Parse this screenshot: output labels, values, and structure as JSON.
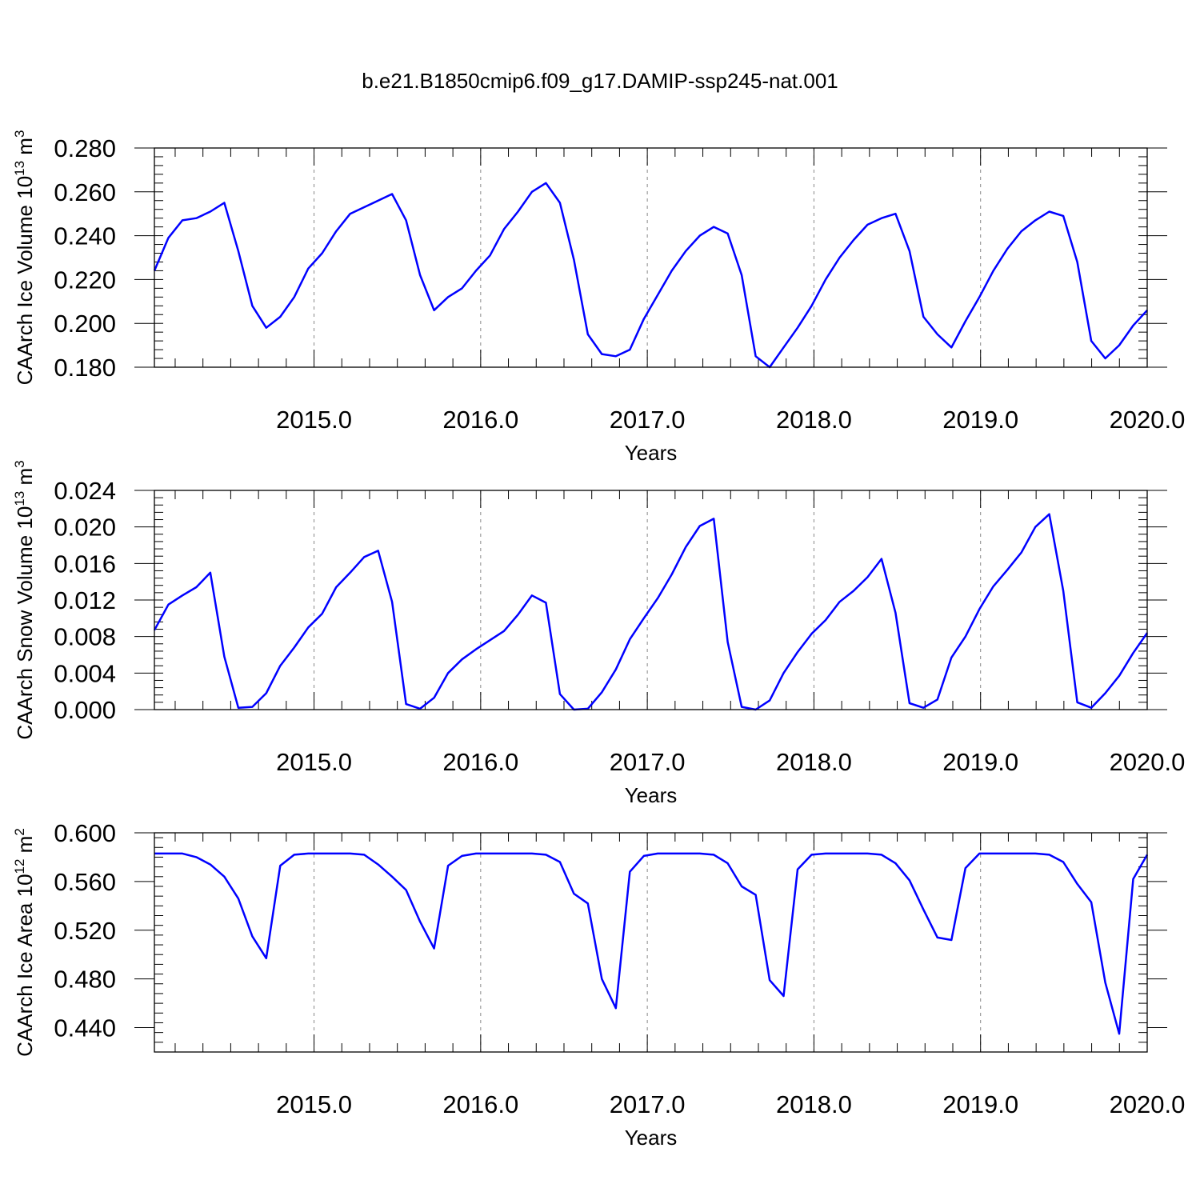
{
  "title": "b.e21.B1850cmip6.f09_g17.DAMIP-ssp245-nat.001",
  "colors": {
    "line": "#0000ff",
    "axis": "#000000",
    "grid": "#888888"
  },
  "chart_data": [
    {
      "type": "line",
      "ylabel_main": "CAArch Ice Volume 10",
      "ylabel_exp": "13",
      "ylabel_unit": " m",
      "ylabel_unit_exp": "3",
      "xlabel": "Years",
      "xlim": [
        2014.042,
        2020.0
      ],
      "ylim": [
        0.18,
        0.28
      ],
      "yticks": [
        "0.180",
        "0.200",
        "0.220",
        "0.240",
        "0.260",
        "0.280"
      ],
      "xticks": [
        "2015.0",
        "2016.0",
        "2017.0",
        "2018.0",
        "2019.0",
        "2020.0"
      ],
      "x_major_grid": "dashed vertical",
      "series": [
        {
          "values": [
            0.224,
            0.239,
            0.247,
            0.248,
            0.251,
            0.255,
            0.233,
            0.208,
            0.198,
            0.203,
            0.212,
            0.225,
            0.232,
            0.242,
            0.25,
            0.253,
            0.256,
            0.259,
            0.247,
            0.222,
            0.206,
            0.212,
            0.216,
            0.224,
            0.231,
            0.243,
            0.251,
            0.26,
            0.264,
            0.255,
            0.229,
            0.195,
            0.186,
            0.185,
            0.188,
            0.202,
            0.213,
            0.224,
            0.233,
            0.24,
            0.244,
            0.241,
            0.222,
            0.185,
            0.18,
            0.189,
            0.198,
            0.208,
            0.22,
            0.23,
            0.238,
            0.245,
            0.248,
            0.25,
            0.233,
            0.203,
            0.195,
            0.189,
            0.201,
            0.212,
            0.224,
            0.234,
            0.242,
            0.247,
            0.251,
            0.249,
            0.228,
            0.192,
            0.184,
            0.19,
            0.199,
            0.206
          ]
        }
      ]
    },
    {
      "type": "line",
      "ylabel_main": "CAArch Snow Volume 10",
      "ylabel_exp": "13",
      "ylabel_unit": " m",
      "ylabel_unit_exp": "3",
      "xlabel": "Years",
      "xlim": [
        2014.042,
        2020.0
      ],
      "ylim": [
        0.0,
        0.024
      ],
      "yticks": [
        "0.000",
        "0.004",
        "0.008",
        "0.012",
        "0.016",
        "0.020",
        "0.024"
      ],
      "xticks": [
        "2015.0",
        "2016.0",
        "2017.0",
        "2018.0",
        "2019.0",
        "2020.0"
      ],
      "x_major_grid": "dashed vertical",
      "series": [
        {
          "values": [
            0.0087,
            0.0115,
            0.0125,
            0.0134,
            0.015,
            0.0058,
            0.0002,
            0.0003,
            0.0018,
            0.0048,
            0.0068,
            0.009,
            0.0105,
            0.0134,
            0.015,
            0.0167,
            0.0174,
            0.0118,
            0.0006,
            0.0001,
            0.0013,
            0.004,
            0.0055,
            0.0066,
            0.0076,
            0.0086,
            0.0104,
            0.0125,
            0.0117,
            0.0017,
            0.0,
            0.0001,
            0.0019,
            0.0044,
            0.0077,
            0.01,
            0.0122,
            0.0148,
            0.0178,
            0.0201,
            0.0209,
            0.0074,
            0.0003,
            0.0,
            0.001,
            0.004,
            0.0063,
            0.0083,
            0.0098,
            0.0118,
            0.013,
            0.0145,
            0.0165,
            0.0106,
            0.0007,
            0.0002,
            0.0011,
            0.0057,
            0.008,
            0.011,
            0.0135,
            0.0153,
            0.0172,
            0.02,
            0.0214,
            0.013,
            0.0008,
            0.0002,
            0.0018,
            0.0037,
            0.0062,
            0.0084
          ]
        }
      ]
    },
    {
      "type": "line",
      "ylabel_main": "CAArch Ice Area 10",
      "ylabel_exp": "12",
      "ylabel_unit": " m",
      "ylabel_unit_exp": "2",
      "xlabel": "Years",
      "xlim": [
        2014.042,
        2020.0
      ],
      "ylim": [
        0.42,
        0.6
      ],
      "yticks": [
        "0.440",
        "0.480",
        "0.520",
        "0.560",
        "0.600"
      ],
      "ytick_values": [
        0.44,
        0.48,
        0.52,
        0.56,
        0.6
      ],
      "xticks": [
        "2015.0",
        "2016.0",
        "2017.0",
        "2018.0",
        "2019.0",
        "2020.0"
      ],
      "x_major_grid": "dashed vertical",
      "series": [
        {
          "values": [
            0.583,
            0.583,
            0.583,
            0.58,
            0.574,
            0.564,
            0.546,
            0.515,
            0.497,
            0.573,
            0.582,
            0.583,
            0.583,
            0.583,
            0.583,
            0.582,
            0.574,
            0.564,
            0.553,
            0.527,
            0.505,
            0.573,
            0.581,
            0.583,
            0.583,
            0.583,
            0.583,
            0.583,
            0.582,
            0.576,
            0.55,
            0.542,
            0.48,
            0.456,
            0.568,
            0.581,
            0.583,
            0.583,
            0.583,
            0.583,
            0.582,
            0.575,
            0.556,
            0.549,
            0.479,
            0.466,
            0.57,
            0.582,
            0.583,
            0.583,
            0.583,
            0.583,
            0.582,
            0.575,
            0.561,
            0.537,
            0.514,
            0.512,
            0.571,
            0.583,
            0.583,
            0.583,
            0.583,
            0.583,
            0.582,
            0.576,
            0.558,
            0.543,
            0.477,
            0.435,
            0.562,
            0.582
          ]
        }
      ]
    }
  ]
}
